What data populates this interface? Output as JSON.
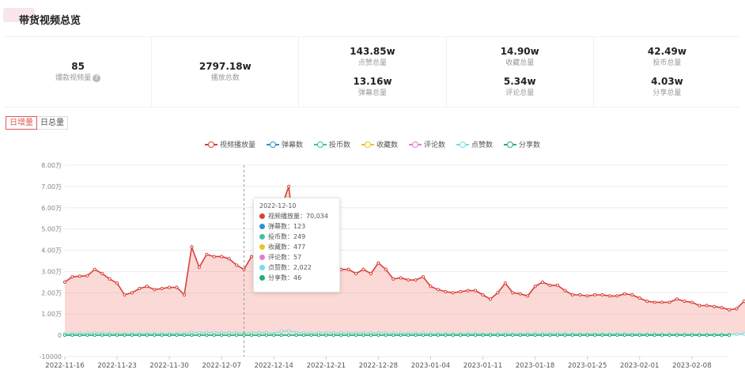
{
  "page": {
    "title": "带货视频总览"
  },
  "stats": [
    [
      {
        "value": "85",
        "label": "爆款视频量",
        "help": true
      }
    ],
    [
      {
        "value": "2797.18w",
        "label": "播放总数"
      }
    ],
    [
      {
        "value": "143.85w",
        "label": "点赞总量"
      },
      {
        "value": "13.16w",
        "label": "弹幕总量"
      }
    ],
    [
      {
        "value": "14.90w",
        "label": "收藏总量"
      },
      {
        "value": "5.34w",
        "label": "评论总量"
      }
    ],
    [
      {
        "value": "42.49w",
        "label": "投币总量"
      },
      {
        "value": "4.03w",
        "label": "分享总量"
      }
    ]
  ],
  "tabs": [
    {
      "label": "日增量",
      "active": true
    },
    {
      "label": "日总量",
      "active": false
    }
  ],
  "legend": [
    {
      "name": "视频播放量",
      "color": "#d9403a"
    },
    {
      "name": "弹幕数",
      "color": "#2f8fd0"
    },
    {
      "name": "投币数",
      "color": "#3fc1a0"
    },
    {
      "name": "收藏数",
      "color": "#f0c020"
    },
    {
      "name": "评论数",
      "color": "#e67ccf"
    },
    {
      "name": "点赞数",
      "color": "#6fe0e0"
    },
    {
      "name": "分享数",
      "color": "#22b070"
    }
  ],
  "tooltip": {
    "date": "2022-12-10",
    "rows": [
      {
        "label": "视频播放量：70,034",
        "color": "#d9403a"
      },
      {
        "label": "弹幕数：123",
        "color": "#2f8fd0"
      },
      {
        "label": "投币数：249",
        "color": "#3fc1a0"
      },
      {
        "label": "收藏数：477",
        "color": "#f0c020"
      },
      {
        "label": "评论数：57",
        "color": "#e67ccf"
      },
      {
        "label": "点赞数：2,022",
        "color": "#6fe0e0"
      },
      {
        "label": "分享数：46",
        "color": "#22b070"
      }
    ]
  },
  "chart_data": {
    "type": "area",
    "xlabel": "",
    "ylabel": "",
    "ylim": [
      -10000,
      80000
    ],
    "yticks": [
      "-10000",
      "0",
      "1.00万",
      "2.00万",
      "3.00万",
      "4.00万",
      "5.00万",
      "6.00万",
      "7.00万",
      "8.00万"
    ],
    "ytick_values": [
      -10000,
      0,
      10000,
      20000,
      30000,
      40000,
      50000,
      60000,
      70000,
      80000
    ],
    "grid": true,
    "legend_position": "top-center",
    "x_start": "2022-11-16",
    "x_end": "2023-02-13",
    "xticks": [
      "2022-11-16",
      "2022-11-23",
      "2022-11-30",
      "2022-12-07",
      "2022-12-14",
      "2022-12-21",
      "2022-12-28",
      "2023-01-04",
      "2023-01-11",
      "2023-01-18",
      "2023-01-25",
      "2023-02-01",
      "2023-02-08"
    ],
    "series": [
      {
        "name": "视频播放量",
        "color": "#d9403a",
        "values": [
          25000,
          27500,
          27800,
          28000,
          31000,
          29000,
          26500,
          24500,
          19000,
          20000,
          22000,
          23000,
          21500,
          22000,
          22500,
          22500,
          19000,
          41500,
          32000,
          38000,
          37000,
          37000,
          36000,
          33000,
          31000,
          37000,
          37000,
          36000,
          25000,
          60000,
          70034,
          40000,
          31000,
          27000,
          33000,
          33000,
          32500,
          31000,
          31000,
          29000,
          31000,
          29000,
          34000,
          31000,
          26500,
          27000,
          26000,
          26000,
          27500,
          23000,
          21500,
          20500,
          20000,
          20500,
          21000,
          21000,
          19000,
          17000,
          20000,
          24500,
          20000,
          19500,
          18500,
          23000,
          25000,
          23500,
          23500,
          21000,
          19000,
          19000,
          18500,
          19000,
          19000,
          18500,
          18500,
          19500,
          19000,
          17500,
          16000,
          15500,
          15500,
          15500,
          17000,
          16000,
          15500,
          14000,
          14000,
          13500,
          13000,
          12000,
          12500,
          16000,
          12000
        ]
      },
      {
        "name": "弹幕数",
        "color": "#2f8fd0",
        "values": []
      },
      {
        "name": "投币数",
        "color": "#3fc1a0",
        "values": []
      },
      {
        "name": "收藏数",
        "color": "#f0c020",
        "values": []
      },
      {
        "name": "评论数",
        "color": "#e67ccf",
        "values": []
      },
      {
        "name": "点赞数",
        "color": "#6fe0e0",
        "values": [
          800,
          900,
          900,
          950,
          1100,
          1000,
          900,
          850,
          700,
          700,
          800,
          800,
          750,
          800,
          800,
          800,
          700,
          1400,
          1100,
          1300,
          1250,
          1250,
          1200,
          1100,
          1050,
          1250,
          1250,
          1200,
          900,
          1800,
          2022,
          1300,
          1050,
          950,
          1100,
          1100,
          1100,
          1050,
          1050,
          1000,
          1050,
          1000,
          1150,
          1050,
          900,
          950,
          900,
          900,
          950,
          800,
          750,
          700,
          700,
          700,
          750,
          750,
          650,
          600,
          700,
          850,
          700,
          700,
          650,
          800,
          850,
          800,
          800,
          750,
          650,
          650,
          650,
          650,
          650,
          650,
          650,
          700,
          650,
          600,
          550,
          550,
          550,
          550,
          600,
          550,
          550,
          500,
          500,
          450,
          450,
          400,
          450,
          550,
          400
        ]
      },
      {
        "name": "分享数",
        "color": "#22b070",
        "values": []
      }
    ],
    "highlight": {
      "date": "2022-12-10"
    }
  }
}
